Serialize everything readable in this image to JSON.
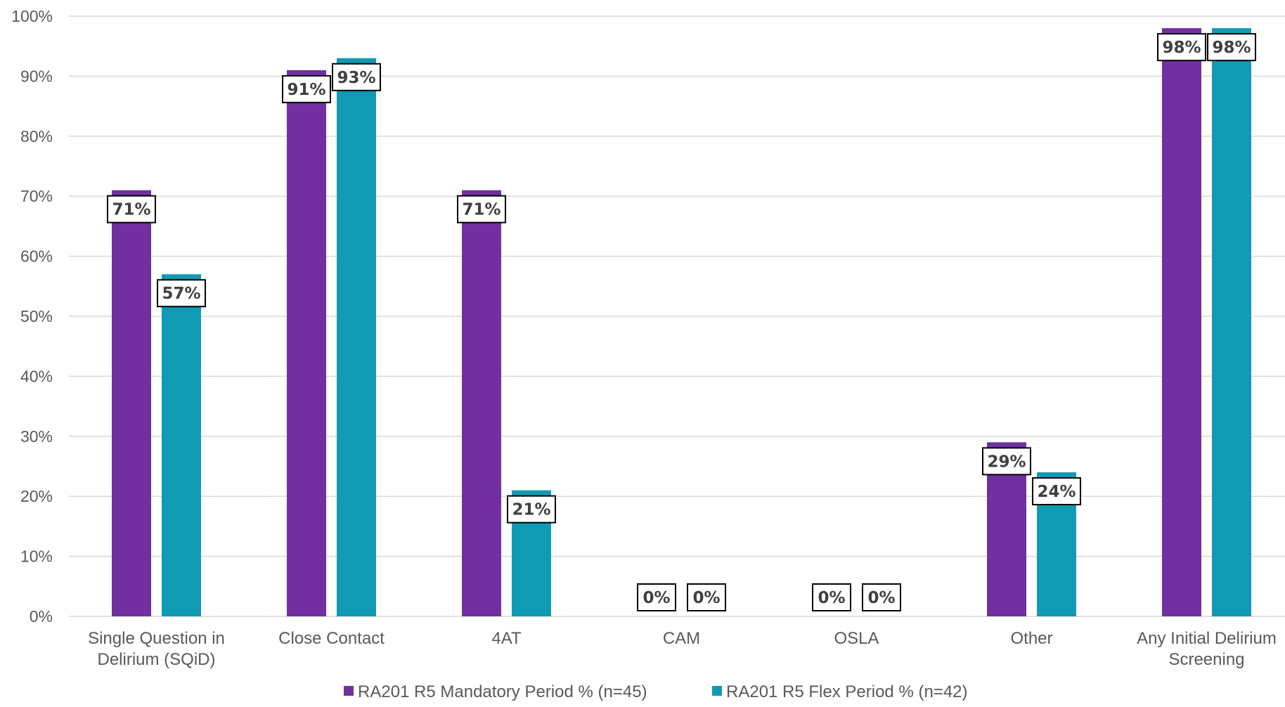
{
  "chart_data": {
    "type": "bar",
    "categories": [
      [
        "Single Question in",
        "Delirium (SQiD)"
      ],
      [
        "Close Contact"
      ],
      [
        "4AT"
      ],
      [
        "CAM"
      ],
      [
        "OSLA"
      ],
      [
        "Other"
      ],
      [
        "Any Initial Delirium",
        "Screening"
      ]
    ],
    "series": [
      {
        "name": "RA201 R5 Mandatory Period % (n=45)",
        "color": "#7030A0",
        "values": [
          71,
          91,
          71,
          0,
          0,
          29,
          98
        ],
        "labels": [
          "71%",
          "91%",
          "71%",
          "0%",
          "0%",
          "29%",
          "98%"
        ]
      },
      {
        "name": "RA201 R5 Flex Period % (n=42)",
        "color": "#119AB4",
        "values": [
          57,
          93,
          21,
          0,
          0,
          24,
          98
        ],
        "labels": [
          "57%",
          "93%",
          "21%",
          "0%",
          "0%",
          "24%",
          "98%"
        ]
      }
    ],
    "ylim": [
      0,
      100
    ],
    "yticks": [
      0,
      10,
      20,
      30,
      40,
      50,
      60,
      70,
      80,
      90,
      100
    ],
    "ytick_labels": [
      "0%",
      "10%",
      "20%",
      "30%",
      "40%",
      "50%",
      "60%",
      "70%",
      "80%",
      "90%",
      "100%"
    ],
    "grid": true,
    "legend_position": "bottom-center",
    "title": "",
    "xlabel": "",
    "ylabel": ""
  }
}
